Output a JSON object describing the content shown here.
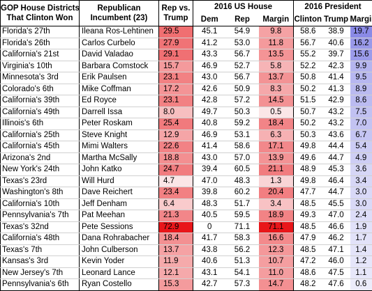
{
  "headers": {
    "district_line1": "GOP House Districts",
    "district_line2": "That Clinton Won",
    "incumbent_line1": "Republican",
    "incumbent_line2": "Incumbent (23)",
    "repvstrump_line1": "Rep vs.",
    "repvstrump_line2": "Trump",
    "house_group": "2016 US House",
    "president_group": "2016 President",
    "dem": "Dem",
    "rep": "Rep",
    "margin": "Margin",
    "clinton": "Clinton",
    "trump": "Trump",
    "pmargin": "Margin"
  },
  "rows": [
    {
      "district": "Florida's 27th",
      "incumbent": "Ileana Ros-Lehtinen",
      "repvstrump": "29.5",
      "dem": "45.1",
      "rep": "54.9",
      "margin": "9.8",
      "clinton": "58.6",
      "trump": "38.9",
      "pmargin": "19.7"
    },
    {
      "district": "Florida's 26th",
      "incumbent": "Carlos Curbelo",
      "repvstrump": "27.9",
      "dem": "41.2",
      "rep": "53.0",
      "margin": "11.8",
      "clinton": "56.7",
      "trump": "40.6",
      "pmargin": "16.2"
    },
    {
      "district": "California's 21st",
      "incumbent": "David Valadao",
      "repvstrump": "29.1",
      "dem": "43.3",
      "rep": "56.7",
      "margin": "13.5",
      "clinton": "55.2",
      "trump": "39.7",
      "pmargin": "15.6"
    },
    {
      "district": "Virginia's 10th",
      "incumbent": "Barbara Comstock",
      "repvstrump": "15.7",
      "dem": "46.9",
      "rep": "52.7",
      "margin": "5.8",
      "clinton": "52.2",
      "trump": "42.3",
      "pmargin": "9.9"
    },
    {
      "district": "Minnesota's 3rd",
      "incumbent": "Erik Paulsen",
      "repvstrump": "23.1",
      "dem": "43.0",
      "rep": "56.7",
      "margin": "13.7",
      "clinton": "50.8",
      "trump": "41.4",
      "pmargin": "9.5"
    },
    {
      "district": "Colorado's 6th",
      "incumbent": "Mike Coffman",
      "repvstrump": "17.2",
      "dem": "42.6",
      "rep": "50.9",
      "margin": "8.3",
      "clinton": "50.2",
      "trump": "41.3",
      "pmargin": "8.9"
    },
    {
      "district": "California's 39th",
      "incumbent": "Ed Royce",
      "repvstrump": "23.1",
      "dem": "42.8",
      "rep": "57.2",
      "margin": "14.5",
      "clinton": "51.5",
      "trump": "42.9",
      "pmargin": "8.6"
    },
    {
      "district": "California's 49th",
      "incumbent": "Darrell Issa",
      "repvstrump": "8.0",
      "dem": "49.7",
      "rep": "50.3",
      "margin": "0.5",
      "clinton": "50.7",
      "trump": "43.2",
      "pmargin": "7.5"
    },
    {
      "district": "Illinois's 6th",
      "incumbent": "Peter Roskam",
      "repvstrump": "25.4",
      "dem": "40.8",
      "rep": "59.2",
      "margin": "18.4",
      "clinton": "50.2",
      "trump": "43.2",
      "pmargin": "7.0"
    },
    {
      "district": "California's 25th",
      "incumbent": "Steve Knight",
      "repvstrump": "12.9",
      "dem": "46.9",
      "rep": "53.1",
      "margin": "6.3",
      "clinton": "50.3",
      "trump": "43.6",
      "pmargin": "6.7"
    },
    {
      "district": "California's 45th",
      "incumbent": "Mimi Walters",
      "repvstrump": "22.6",
      "dem": "41.4",
      "rep": "58.6",
      "margin": "17.1",
      "clinton": "49.8",
      "trump": "44.4",
      "pmargin": "5.4"
    },
    {
      "district": "Arizona's 2nd",
      "incumbent": "Martha McSally",
      "repvstrump": "18.8",
      "dem": "43.0",
      "rep": "57.0",
      "margin": "13.9",
      "clinton": "49.6",
      "trump": "44.7",
      "pmargin": "4.9"
    },
    {
      "district": "New York's 24th",
      "incumbent": "John Katko",
      "repvstrump": "24.7",
      "dem": "39.4",
      "rep": "60.5",
      "margin": "21.1",
      "clinton": "48.9",
      "trump": "45.3",
      "pmargin": "3.6"
    },
    {
      "district": "Texas's 23rd",
      "incumbent": "Will Hurd",
      "repvstrump": "4.7",
      "dem": "47.0",
      "rep": "48.3",
      "margin": "1.3",
      "clinton": "49.8",
      "trump": "46.4",
      "pmargin": "3.4"
    },
    {
      "district": "Washington's 8th",
      "incumbent": "Dave Reichert",
      "repvstrump": "23.4",
      "dem": "39.8",
      "rep": "60.2",
      "margin": "20.4",
      "clinton": "47.7",
      "trump": "44.7",
      "pmargin": "3.0"
    },
    {
      "district": "California's 10th",
      "incumbent": "Jeff Denham",
      "repvstrump": "6.4",
      "dem": "48.3",
      "rep": "51.7",
      "margin": "3.4",
      "clinton": "48.5",
      "trump": "45.5",
      "pmargin": "3.0"
    },
    {
      "district": "Pennsylvania's 7th",
      "incumbent": "Pat Meehan",
      "repvstrump": "21.3",
      "dem": "40.5",
      "rep": "59.5",
      "margin": "18.9",
      "clinton": "49.3",
      "trump": "47.0",
      "pmargin": "2.4"
    },
    {
      "district": "Texas's 32nd",
      "incumbent": "Pete Sessions",
      "repvstrump": "72.9",
      "dem": "0",
      "rep": "71.1",
      "margin": "71.1",
      "clinton": "48.5",
      "trump": "46.6",
      "pmargin": "1.9"
    },
    {
      "district": "California's 48th",
      "incumbent": "Dana Rohrabacher",
      "repvstrump": "18.4",
      "dem": "41.7",
      "rep": "58.3",
      "margin": "16.6",
      "clinton": "47.9",
      "trump": "46.2",
      "pmargin": "1.7"
    },
    {
      "district": "Texas's 7th",
      "incumbent": "John Culberson",
      "repvstrump": "13.7",
      "dem": "43.8",
      "rep": "56.2",
      "margin": "12.3",
      "clinton": "48.5",
      "trump": "47.1",
      "pmargin": "1.4"
    },
    {
      "district": "Kansas's 3rd",
      "incumbent": "Kevin Yoder",
      "repvstrump": "11.9",
      "dem": "40.6",
      "rep": "51.3",
      "margin": "10.7",
      "clinton": "47.2",
      "trump": "46.0",
      "pmargin": "1.2"
    },
    {
      "district": "New Jersey's 7th",
      "incumbent": "Leonard Lance",
      "repvstrump": "12.1",
      "dem": "43.1",
      "rep": "54.1",
      "margin": "11.0",
      "clinton": "48.6",
      "trump": "47.5",
      "pmargin": "1.1"
    },
    {
      "district": "Pennsylvania's 6th",
      "incumbent": "Ryan Costello",
      "repvstrump": "15.3",
      "dem": "42.7",
      "rep": "57.3",
      "margin": "14.7",
      "clinton": "48.2",
      "trump": "47.6",
      "pmargin": "0.6"
    }
  ],
  "colors": {
    "red_max": "#e8161a",
    "red_min": "#fbe6e7",
    "blue_max": "#8a8ae6",
    "blue_min": "#ececfb",
    "text": "#000000"
  }
}
